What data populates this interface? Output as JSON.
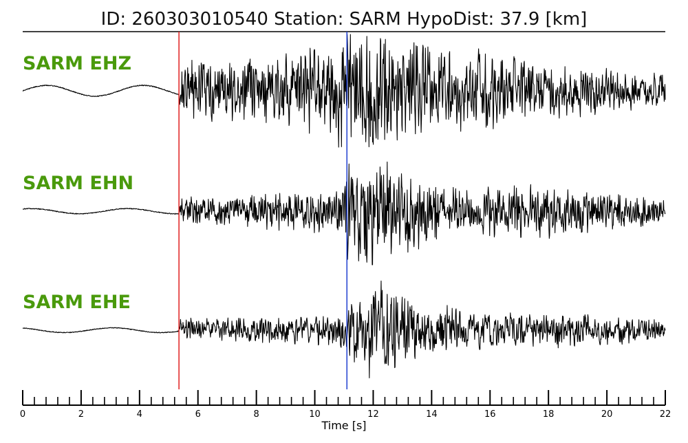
{
  "header": {
    "title": "ID: 260303010540   Station: SARM   HypoDist:    37.9 [km]"
  },
  "chart_data": {
    "type": "line",
    "xlabel": "Time [s]",
    "xlim": [
      0,
      22
    ],
    "x_ticks": [
      0,
      2,
      4,
      6,
      8,
      10,
      12,
      14,
      16,
      18,
      20,
      22
    ],
    "x_tick_labels": [
      "0",
      "2",
      "4",
      "6",
      "8",
      "10",
      "12",
      "14",
      "16",
      "18",
      "20",
      "22"
    ],
    "minor_tick_step": 0.4,
    "grid": false,
    "p_pick_time": 5.35,
    "s_pick_time": 11.1,
    "p_pick_color": "#e02020",
    "s_pick_color": "#1f3fd0",
    "label_color": "#4a9a0c",
    "trace_color": "#000000",
    "series": [
      {
        "name": "SARM EHZ",
        "noise_amp": 0.06,
        "envelope": [
          [
            0,
            0.04
          ],
          [
            5.3,
            0.05
          ],
          [
            5.4,
            0.5
          ],
          [
            7,
            0.5
          ],
          [
            9,
            0.55
          ],
          [
            10,
            0.7
          ],
          [
            11,
            0.95
          ],
          [
            12,
            1.0
          ],
          [
            13,
            0.75
          ],
          [
            16,
            0.6
          ],
          [
            19,
            0.38
          ],
          [
            22,
            0.28
          ]
        ]
      },
      {
        "name": "SARM EHN",
        "noise_amp": 0.03,
        "envelope": [
          [
            0,
            0.02
          ],
          [
            5.3,
            0.03
          ],
          [
            5.4,
            0.24
          ],
          [
            9,
            0.3
          ],
          [
            11,
            0.45
          ],
          [
            11.1,
            0.85
          ],
          [
            12,
            1.0
          ],
          [
            13,
            0.7
          ],
          [
            15,
            0.4
          ],
          [
            18,
            0.45
          ],
          [
            22,
            0.2
          ]
        ]
      },
      {
        "name": "SARM EHE",
        "noise_amp": 0.03,
        "envelope": [
          [
            0,
            0.02
          ],
          [
            5.3,
            0.03
          ],
          [
            5.4,
            0.22
          ],
          [
            10,
            0.24
          ],
          [
            11,
            0.35
          ],
          [
            12,
            1.0
          ],
          [
            13,
            0.55
          ],
          [
            16,
            0.3
          ],
          [
            18,
            0.32
          ],
          [
            22,
            0.18
          ]
        ]
      }
    ]
  }
}
